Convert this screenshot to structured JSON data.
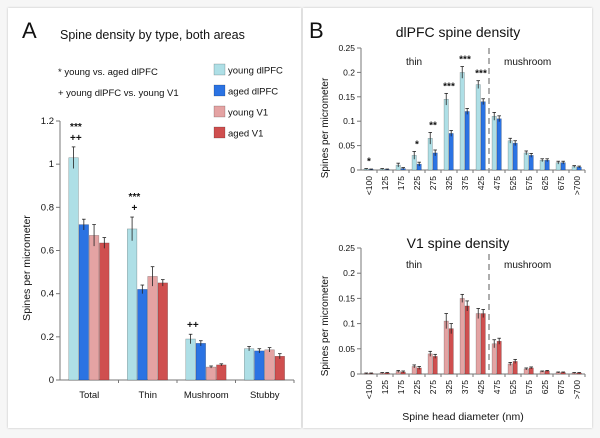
{
  "colors": {
    "young_dlpfc": "#aedfe6",
    "aged_dlpfc": "#2b73e3",
    "young_v1": "#e4a3a3",
    "aged_v1": "#cf4f4f",
    "dashed_line": "#9a9a9a",
    "axis": "#777777"
  },
  "panel_a": {
    "letter": "A",
    "notes": [
      "* young vs. aged dlPFC",
      "+ young dlPFC vs. young V1"
    ]
  },
  "panel_b": {
    "letter": "B"
  },
  "chart_data": [
    {
      "id": "A",
      "type": "bar",
      "title": "Spine density by type, both areas",
      "xlabel": "",
      "ylabel": "Spines per micrometer",
      "ylim": [
        0,
        1.2
      ],
      "yticks": [
        "0",
        "0.2",
        "0.4",
        "0.6",
        "0.8",
        "1",
        "1.2"
      ],
      "categories": [
        "Total",
        "Thin",
        "Mushroom",
        "Stubby"
      ],
      "legend_position": "top-right",
      "series": [
        {
          "name": "young dlPFC",
          "values": [
            1.03,
            0.7,
            0.19,
            0.145
          ],
          "errors": [
            0.05,
            0.055,
            0.022,
            0.01
          ]
        },
        {
          "name": "aged dlPFC",
          "values": [
            0.72,
            0.42,
            0.17,
            0.135
          ],
          "errors": [
            0.025,
            0.02,
            0.012,
            0.01
          ]
        },
        {
          "name": "young V1",
          "values": [
            0.67,
            0.48,
            0.06,
            0.14
          ],
          "errors": [
            0.05,
            0.045,
            0.005,
            0.01
          ]
        },
        {
          "name": "aged V1",
          "values": [
            0.635,
            0.45,
            0.07,
            0.11
          ],
          "errors": [
            0.025,
            0.015,
            0.005,
            0.012
          ]
        }
      ],
      "annotations": [
        {
          "category": "Total",
          "lines": [
            "***",
            "++"
          ]
        },
        {
          "category": "Thin",
          "lines": [
            "***",
            "+"
          ]
        },
        {
          "category": "Mushroom",
          "lines": [
            "++"
          ]
        }
      ]
    },
    {
      "id": "B-top",
      "type": "bar",
      "title": "dlPFC spine density",
      "xlabel": "",
      "ylabel": "Spines per micrometer",
      "ylim": [
        0,
        0.25
      ],
      "yticks": [
        "0",
        "0.05",
        "0.1",
        "0.15",
        "0.2",
        "0.25"
      ],
      "categories": [
        "<100",
        "125",
        "175",
        "225",
        "275",
        "325",
        "375",
        "425",
        "475",
        "525",
        "575",
        "625",
        "675",
        ">700"
      ],
      "region_labels": [
        "thin",
        "mushroom"
      ],
      "series": [
        {
          "name": "young dlPFC",
          "values": [
            0.002,
            0.002,
            0.01,
            0.03,
            0.065,
            0.145,
            0.2,
            0.175,
            0.11,
            0.06,
            0.035,
            0.02,
            0.015,
            0.007
          ],
          "errors": [
            0.001,
            0.001,
            0.004,
            0.008,
            0.012,
            0.012,
            0.012,
            0.008,
            0.008,
            0.005,
            0.004,
            0.003,
            0.003,
            0.002
          ]
        },
        {
          "name": "aged dlPFC",
          "values": [
            0.001,
            0.001,
            0.003,
            0.012,
            0.035,
            0.075,
            0.12,
            0.14,
            0.105,
            0.055,
            0.03,
            0.02,
            0.015,
            0.006
          ],
          "errors": [
            0.001,
            0.001,
            0.002,
            0.004,
            0.006,
            0.006,
            0.006,
            0.006,
            0.006,
            0.005,
            0.004,
            0.003,
            0.003,
            0.002
          ]
        }
      ],
      "annotations": [
        {
          "category": "<100",
          "text": "*"
        },
        {
          "category": "225",
          "text": "*"
        },
        {
          "category": "275",
          "text": "**"
        },
        {
          "category": "325",
          "text": "***"
        },
        {
          "category": "375",
          "text": "***"
        },
        {
          "category": "425",
          "text": "***"
        }
      ]
    },
    {
      "id": "B-bottom",
      "type": "bar",
      "title": "V1 spine density",
      "xlabel": "Spine head diameter (nm)",
      "ylabel": "Spines per micrometer",
      "ylim": [
        0,
        0.25
      ],
      "yticks": [
        "0",
        "0.05",
        "0.1",
        "0.15",
        "0.2",
        "0.25"
      ],
      "categories": [
        "<100",
        "125",
        "175",
        "225",
        "275",
        "325",
        "375",
        "425",
        "475",
        "525",
        "575",
        "625",
        "675",
        ">700"
      ],
      "region_labels": [
        "thin",
        "mushroom"
      ],
      "series": [
        {
          "name": "young V1",
          "values": [
            0.001,
            0.002,
            0.005,
            0.015,
            0.04,
            0.105,
            0.15,
            0.12,
            0.06,
            0.02,
            0.01,
            0.005,
            0.003,
            0.002
          ],
          "errors": [
            0.001,
            0.001,
            0.002,
            0.003,
            0.005,
            0.015,
            0.008,
            0.01,
            0.008,
            0.003,
            0.002,
            0.001,
            0.001,
            0.001
          ]
        },
        {
          "name": "aged V1",
          "values": [
            0.001,
            0.002,
            0.004,
            0.012,
            0.035,
            0.09,
            0.135,
            0.12,
            0.065,
            0.025,
            0.012,
            0.006,
            0.003,
            0.002
          ],
          "errors": [
            0.001,
            0.001,
            0.002,
            0.003,
            0.004,
            0.01,
            0.01,
            0.008,
            0.006,
            0.004,
            0.002,
            0.001,
            0.001,
            0.001
          ]
        }
      ]
    }
  ]
}
